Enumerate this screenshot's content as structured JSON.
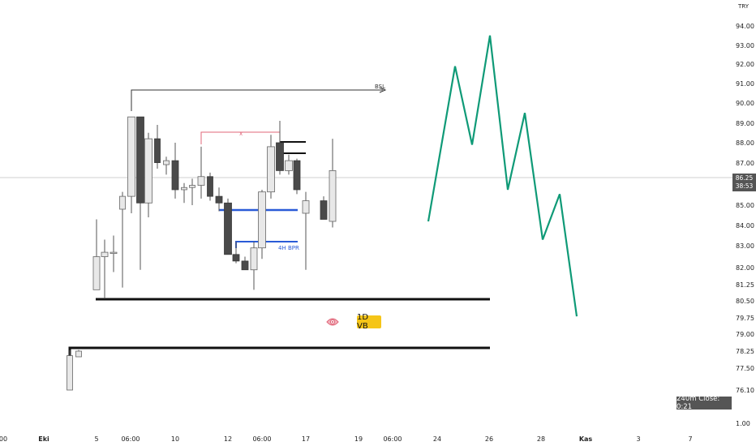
{
  "chart_data": {
    "type": "candlestick",
    "currency": "TRY",
    "y_ticks": [
      "94.00",
      "93.00",
      "92.00",
      "91.00",
      "90.00",
      "89.00",
      "88.00",
      "87.00",
      "85.00",
      "84.00",
      "83.00",
      "82.00",
      "81.25",
      "80.50",
      "79.75",
      "79.00",
      "78.25",
      "77.50",
      "76.10",
      "1.00"
    ],
    "x_ticks": [
      {
        "label": "00",
        "bold": false
      },
      {
        "label": "Eki",
        "bold": true
      },
      {
        "label": "5",
        "bold": false
      },
      {
        "label": "06:00",
        "bold": false
      },
      {
        "label": "10",
        "bold": false
      },
      {
        "label": "12",
        "bold": false
      },
      {
        "label": "06:00",
        "bold": false
      },
      {
        "label": "17",
        "bold": false
      },
      {
        "label": "19",
        "bold": false
      },
      {
        "label": "06:00",
        "bold": false
      },
      {
        "label": "24",
        "bold": false
      },
      {
        "label": "26",
        "bold": false
      },
      {
        "label": "28",
        "bold": false
      },
      {
        "label": "Kas",
        "bold": true
      },
      {
        "label": "3",
        "bold": false
      },
      {
        "label": "7",
        "bold": false
      }
    ],
    "candles": [
      {
        "o": 76.1,
        "h": 78.3,
        "l": 76.1,
        "c": 78.05
      },
      {
        "o": 78.0,
        "h": 78.3,
        "l": 78.0,
        "c": 78.25
      },
      {
        "o": 81.0,
        "h": 84.3,
        "l": 81.0,
        "c": 82.5
      },
      {
        "o": 82.5,
        "h": 83.3,
        "l": 80.6,
        "c": 82.7
      },
      {
        "o": 82.7,
        "h": 83.5,
        "l": 81.8,
        "c": 82.7
      },
      {
        "o": 84.8,
        "h": 85.6,
        "l": 81.1,
        "c": 85.4
      },
      {
        "o": 85.4,
        "h": 89.3,
        "l": 84.6,
        "c": 89.3
      },
      {
        "o": 89.3,
        "h": 89.3,
        "l": 81.9,
        "c": 85.1
      },
      {
        "o": 85.1,
        "h": 88.5,
        "l": 84.4,
        "c": 88.2
      },
      {
        "o": 88.2,
        "h": 88.9,
        "l": 86.7,
        "c": 87.0
      },
      {
        "o": 86.9,
        "h": 87.3,
        "l": 86.4,
        "c": 87.1
      },
      {
        "o": 87.1,
        "h": 88.0,
        "l": 85.3,
        "c": 85.7
      },
      {
        "o": 85.7,
        "h": 86.0,
        "l": 85.1,
        "c": 85.8
      },
      {
        "o": 85.8,
        "h": 86.2,
        "l": 85.0,
        "c": 85.9
      },
      {
        "o": 85.9,
        "h": 87.8,
        "l": 85.3,
        "c": 86.3
      },
      {
        "o": 86.3,
        "h": 86.5,
        "l": 85.2,
        "c": 85.4
      },
      {
        "o": 85.4,
        "h": 85.8,
        "l": 84.7,
        "c": 85.1
      },
      {
        "o": 85.1,
        "h": 85.3,
        "l": 82.6,
        "c": 82.6
      },
      {
        "o": 82.6,
        "h": 83.2,
        "l": 82.2,
        "c": 82.3
      },
      {
        "o": 82.3,
        "h": 82.5,
        "l": 81.9,
        "c": 81.9
      },
      {
        "o": 81.9,
        "h": 83.2,
        "l": 81.0,
        "c": 82.9
      },
      {
        "o": 82.9,
        "h": 85.7,
        "l": 82.4,
        "c": 85.6
      },
      {
        "o": 85.6,
        "h": 88.4,
        "l": 85.3,
        "c": 87.8
      },
      {
        "o": 88.0,
        "h": 89.1,
        "l": 86.4,
        "c": 86.6
      },
      {
        "o": 86.6,
        "h": 87.4,
        "l": 86.4,
        "c": 87.1
      },
      {
        "o": 87.1,
        "h": 87.2,
        "l": 85.5,
        "c": 85.7
      },
      {
        "o": 84.6,
        "h": 85.6,
        "l": 81.9,
        "c": 85.2
      },
      {
        "o": 85.2,
        "h": 85.4,
        "l": 84.3,
        "c": 84.3
      },
      {
        "o": 84.2,
        "h": 88.2,
        "l": 83.9,
        "c": 86.6
      }
    ],
    "projection": [
      84.2,
      91.9,
      87.9,
      94.5,
      85.7,
      89.5,
      83.3,
      85.5,
      79.8
    ],
    "last_price": "86.25",
    "countdown": "38:53",
    "annotations": {
      "bsl_label": "BSL",
      "x_label": "x",
      "bpr_label": "4H BPR",
      "vb_label": "1D VB",
      "close_timer": "240m Close: 0:21"
    },
    "colors": {
      "up_body": "#e8e8e8",
      "down_body": "#4a4a4a",
      "projection": "#0f9a77",
      "bpr_line": "#2a5bd7",
      "x_line": "#e0677a",
      "vb_badge": "#f5c518"
    }
  }
}
